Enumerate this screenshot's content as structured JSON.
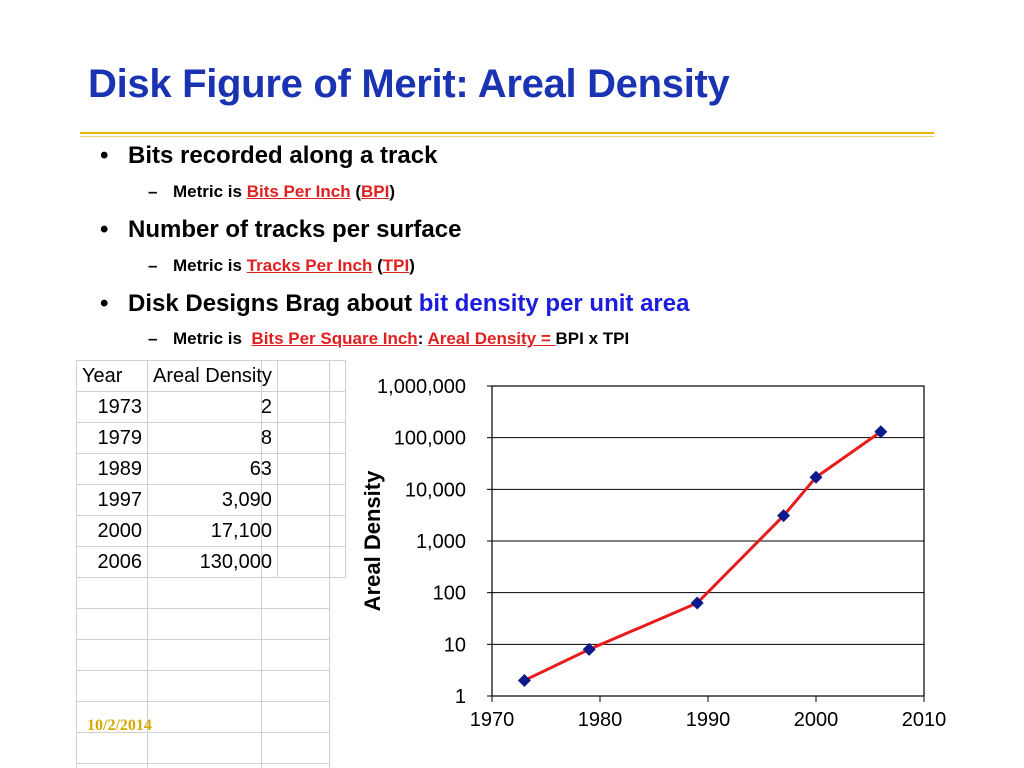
{
  "slide": {
    "title": "Disk Figure of Merit: Areal Density",
    "date": "10/2/2014"
  },
  "bullets": [
    {
      "dot": "•",
      "text": "Bits recorded along a track"
    },
    {
      "dot": "•",
      "text": "Number of tracks per surface"
    },
    {
      "dot": "•",
      "text_plain": "Disk Designs Brag about ",
      "text_blue": "bit density per unit area"
    }
  ],
  "sub": [
    {
      "dash": "–",
      "pre": "Metric is ",
      "link1": "Bits Per Inch",
      "mid": " (",
      "link2": "BPI",
      "post": ")"
    },
    {
      "dash": "–",
      "pre": "Metric is ",
      "link1": "Tracks Per Inch",
      "mid": " (",
      "link2": "TPI",
      "post": ")"
    },
    {
      "dash": "–",
      "pre": "Metric is  ",
      "link1": "Bits Per Square Inch",
      "mid": ": ",
      "link2": "Areal Density",
      "eq": " = ",
      "post": "BPI x TPI"
    }
  ],
  "table": {
    "headers": [
      "Year",
      "Areal Density"
    ],
    "rows": [
      [
        "1973",
        "2"
      ],
      [
        "1979",
        "8"
      ],
      [
        "1989",
        "63"
      ],
      [
        "1997",
        "3,090"
      ],
      [
        "2000",
        "17,100"
      ],
      [
        "2006",
        "130,000"
      ]
    ]
  },
  "chart_data": {
    "type": "line",
    "x": [
      1973,
      1979,
      1989,
      1997,
      2000,
      2006
    ],
    "values": [
      2,
      8,
      63,
      3090,
      17100,
      130000
    ],
    "xlabel": "",
    "ylabel": "Areal Density",
    "yscale": "log",
    "xlim": [
      1970,
      2010
    ],
    "ylim": [
      1,
      1000000
    ],
    "xticks": [
      "1970",
      "1980",
      "1990",
      "2000",
      "2010"
    ],
    "yticks": [
      "1",
      "10",
      "100",
      "1,000",
      "10,000",
      "100,000",
      "1,000,000"
    ],
    "grid": "horizontal",
    "line_color": "#e81c1c",
    "marker_color": "#0d1a8c"
  }
}
